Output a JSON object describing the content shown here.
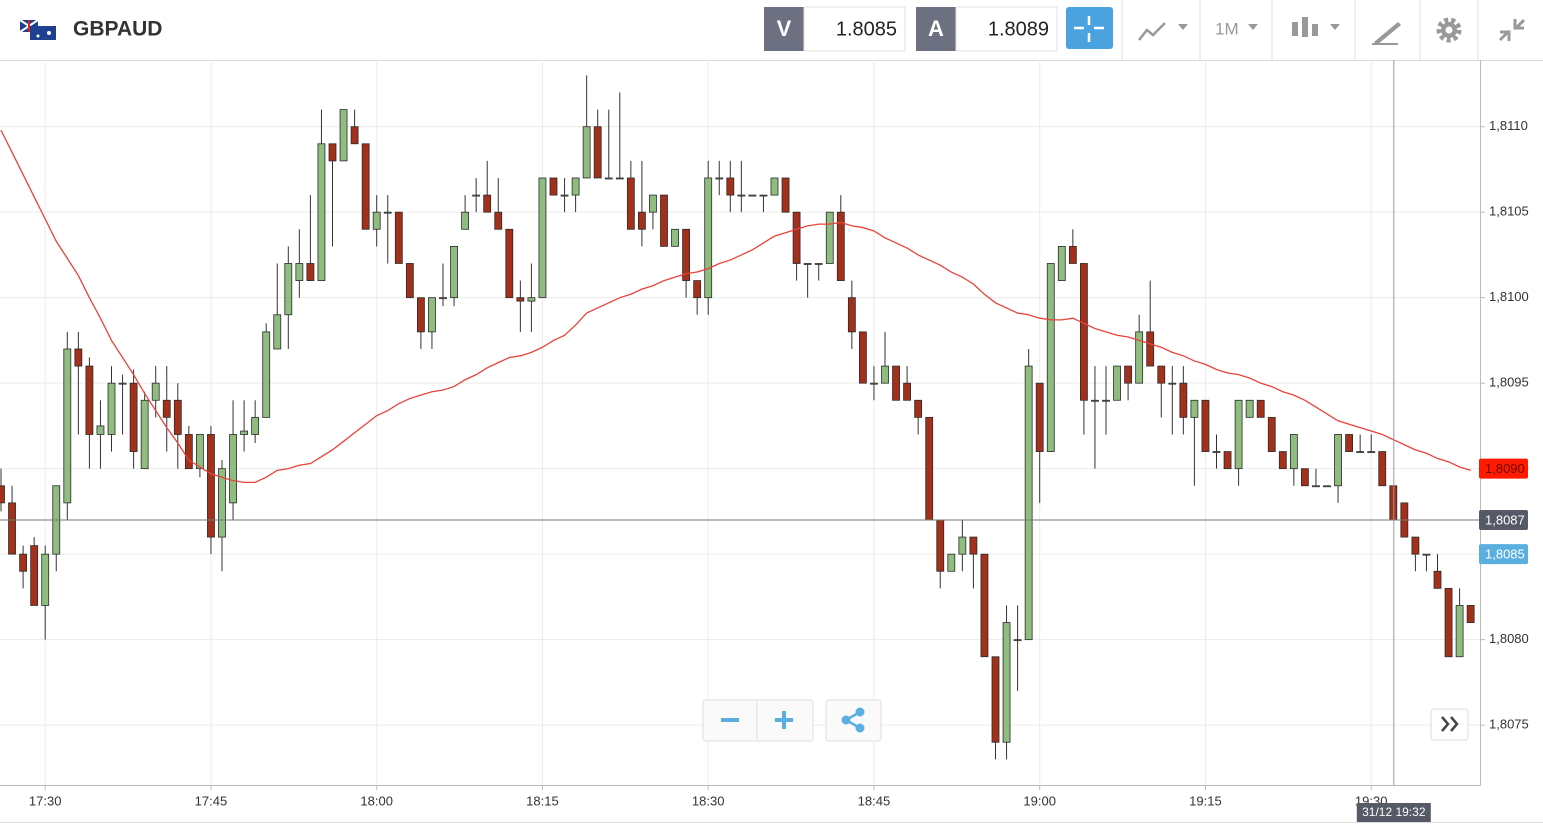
{
  "toolbar": {
    "symbol": "GBPAUD",
    "bid_label": "V",
    "bid": "1.8085",
    "ask_label": "A",
    "ask": "1.8089",
    "timeframe": "1M"
  },
  "chart_data": {
    "type": "candlestick",
    "categories": [
      null,
      null,
      null,
      null,
      "17:30",
      null,
      null,
      null,
      null,
      null,
      null,
      null,
      null,
      null,
      null,
      null,
      null,
      null,
      null,
      "17:45",
      null,
      null,
      null,
      null,
      null,
      null,
      null,
      null,
      null,
      null,
      null,
      null,
      null,
      null,
      "18:00",
      null,
      null,
      null,
      null,
      null,
      null,
      null,
      null,
      null,
      null,
      null,
      null,
      null,
      null,
      "18:15",
      null,
      null,
      null,
      null,
      null,
      null,
      null,
      null,
      null,
      null,
      null,
      null,
      null,
      null,
      "18:30",
      null,
      null,
      null,
      null,
      null,
      null,
      null,
      null,
      null,
      null,
      null,
      null,
      null,
      null,
      "18:45",
      null,
      null,
      null,
      null,
      null,
      null,
      null,
      null,
      null,
      null,
      null,
      null,
      null,
      null,
      "19:00",
      null,
      null,
      null,
      null,
      null,
      null,
      null,
      null,
      null,
      null,
      null,
      null,
      null,
      null,
      "19:15",
      null,
      null,
      null,
      null,
      null,
      null,
      null,
      null,
      null,
      null,
      null,
      null,
      null,
      null,
      "19:30",
      null,
      null,
      null,
      null,
      null,
      null,
      null,
      null,
      null
    ],
    "open": [
      1.8089,
      1.8088,
      1.8085,
      1.80855,
      1.8082,
      1.8085,
      1.8088,
      1.8097,
      1.8096,
      1.8092,
      1.8092,
      1.8095,
      1.8095,
      1.809,
      1.8094,
      1.8094,
      1.8094,
      1.8092,
      1.809,
      1.8092,
      1.8086,
      1.8088,
      1.8092,
      1.8092,
      1.8093,
      1.8097,
      1.8099,
      1.8101,
      1.8102,
      1.8101,
      1.8109,
      1.8108,
      1.811,
      1.8109,
      1.8104,
      1.8105,
      1.8105,
      1.8102,
      1.81,
      1.8098,
      1.81,
      1.81,
      1.8104,
      1.8106,
      1.8106,
      1.8105,
      1.8104,
      1.81,
      1.80998,
      1.81,
      1.8107,
      1.8106,
      1.8106,
      1.8107,
      1.811,
      1.8107,
      1.8107,
      1.8107,
      1.8105,
      1.8105,
      1.8106,
      1.8103,
      1.8104,
      1.8101,
      1.81,
      1.8107,
      1.8107,
      1.8106,
      1.8106,
      1.8106,
      1.8106,
      1.8107,
      1.8105,
      1.8102,
      1.8102,
      1.8102,
      1.8105,
      1.81,
      1.8098,
      1.8095,
      1.8095,
      1.8096,
      1.8095,
      1.8094,
      1.8093,
      1.8087,
      1.8084,
      1.8085,
      1.8086,
      1.8085,
      1.8079,
      1.8074,
      1.808,
      1.808,
      1.8095,
      1.8091,
      1.8101,
      1.8103,
      1.8102,
      1.8094,
      1.8094,
      1.8094,
      1.8096,
      1.8095,
      1.8098,
      1.8096,
      1.8095,
      1.8095,
      1.8093,
      1.8094,
      1.8091,
      1.8091,
      1.809,
      1.8093,
      1.8094,
      1.8093,
      1.8091,
      1.809,
      1.809,
      1.8089,
      1.8089,
      1.8089,
      1.8092,
      1.8091,
      1.8091,
      1.8091,
      1.8089,
      1.8088,
      1.8086,
      1.8085,
      1.8084,
      1.8083,
      1.8079,
      1.8082
    ],
    "high": [
      1.809,
      1.8089,
      1.80855,
      1.8086,
      1.80855,
      1.8089,
      1.8098,
      1.8098,
      1.80965,
      1.8094,
      1.8096,
      1.80955,
      1.80958,
      1.80945,
      1.8096,
      1.8096,
      1.8095,
      1.80925,
      1.8092,
      1.80925,
      1.80905,
      1.8094,
      1.8094,
      1.8094,
      1.80985,
      1.8102,
      1.8103,
      1.8104,
      1.8106,
      1.8111,
      1.8109,
      1.8111,
      1.8111,
      1.8109,
      1.8106,
      1.8106,
      1.8105,
      1.8102,
      1.81,
      1.81,
      1.8102,
      1.8103,
      1.8106,
      1.8107,
      1.8108,
      1.8107,
      1.8104,
      1.8101,
      1.8102,
      1.8107,
      1.8107,
      1.8107,
      1.8107,
      1.8113,
      1.8111,
      1.8111,
      1.8112,
      1.8108,
      1.8108,
      1.8106,
      1.8106,
      1.8104,
      1.8104,
      1.8101,
      1.8108,
      1.8108,
      1.8108,
      1.8108,
      1.8106,
      1.8106,
      1.8107,
      1.8107,
      1.8105,
      1.8102,
      1.8102,
      1.8105,
      1.8106,
      1.8101,
      1.8098,
      1.8096,
      1.8098,
      1.8096,
      1.8096,
      1.8094,
      1.8093,
      1.8087,
      1.8085,
      1.8087,
      1.8086,
      1.8085,
      1.8079,
      1.8082,
      1.8082,
      1.8097,
      1.8095,
      1.8102,
      1.8103,
      1.8104,
      1.8102,
      1.8096,
      1.8096,
      1.8096,
      1.8096,
      1.8099,
      1.8101,
      1.8096,
      1.8096,
      1.8096,
      1.8094,
      1.8094,
      1.8092,
      1.8091,
      1.8094,
      1.8094,
      1.8094,
      1.8093,
      1.8091,
      1.8092,
      1.809,
      1.809,
      1.8089,
      1.8092,
      1.8092,
      1.8092,
      1.8092,
      1.8091,
      1.8089,
      1.8088,
      1.8086,
      1.8085,
      1.8085,
      1.8083,
      1.8083,
      1.8082
    ],
    "low": [
      1.80875,
      1.8085,
      1.8083,
      1.8082,
      1.808,
      1.8084,
      1.8087,
      1.8092,
      1.809,
      1.809,
      1.8091,
      1.8092,
      1.809,
      1.809,
      1.8093,
      1.8091,
      1.809,
      1.809,
      1.80895,
      1.8085,
      1.8084,
      1.8087,
      1.8091,
      1.80915,
      1.8093,
      1.8097,
      1.8097,
      1.81,
      1.8101,
      1.8101,
      1.8103,
      1.8108,
      1.8109,
      1.8104,
      1.8103,
      1.8102,
      1.8102,
      1.81,
      1.8097,
      1.8097,
      1.80995,
      1.80995,
      1.8104,
      1.8105,
      1.8105,
      1.8104,
      1.81,
      1.8098,
      1.8098,
      1.81,
      1.8106,
      1.8105,
      1.8105,
      1.8107,
      1.8107,
      1.8107,
      1.8107,
      1.8104,
      1.8103,
      1.8104,
      1.8103,
      1.8103,
      1.81,
      1.8099,
      1.8099,
      1.8106,
      1.8105,
      1.8105,
      1.8106,
      1.8105,
      1.8106,
      1.8105,
      1.8101,
      1.81,
      1.8101,
      1.8102,
      1.8101,
      1.8097,
      1.8095,
      1.8094,
      1.8095,
      1.8094,
      1.8094,
      1.8092,
      1.8087,
      1.8083,
      1.8084,
      1.8084,
      1.8083,
      1.8079,
      1.8073,
      1.8073,
      1.8077,
      1.808,
      1.8088,
      1.8091,
      1.8101,
      1.8102,
      1.8092,
      1.809,
      1.8092,
      1.8094,
      1.8094,
      1.8095,
      1.8096,
      1.8093,
      1.8092,
      1.8092,
      1.8089,
      1.8091,
      1.809,
      1.809,
      1.8089,
      1.8093,
      1.8093,
      1.8091,
      1.809,
      1.8089,
      1.8089,
      1.8089,
      1.8089,
      1.8088,
      1.8091,
      1.8091,
      1.8091,
      1.8089,
      1.8087,
      1.8086,
      1.8084,
      1.8084,
      1.8083,
      1.8079,
      1.8079,
      1.8081
    ],
    "close": [
      1.8088,
      1.8085,
      1.8084,
      1.8082,
      1.8085,
      1.8089,
      1.8097,
      1.8096,
      1.8092,
      1.80925,
      1.8095,
      1.8095,
      1.8091,
      1.8094,
      1.8095,
      1.8093,
      1.8092,
      1.809,
      1.8092,
      1.8086,
      1.809,
      1.8092,
      1.80922,
      1.8093,
      1.8098,
      1.8099,
      1.8102,
      1.8102,
      1.8101,
      1.8109,
      1.8108,
      1.8111,
      1.8109,
      1.8104,
      1.8105,
      1.8105,
      1.8102,
      1.81,
      1.8098,
      1.81,
      1.81,
      1.8103,
      1.8105,
      1.8106,
      1.8105,
      1.8104,
      1.81,
      1.80998,
      1.81,
      1.8107,
      1.8106,
      1.8106,
      1.8107,
      1.811,
      1.8107,
      1.8107,
      1.8107,
      1.8104,
      1.8104,
      1.8106,
      1.8103,
      1.8104,
      1.8101,
      1.81,
      1.8107,
      1.8107,
      1.8106,
      1.8106,
      1.8106,
      1.8106,
      1.8107,
      1.8105,
      1.8102,
      1.8102,
      1.8102,
      1.8105,
      1.8101,
      1.8098,
      1.8095,
      1.8095,
      1.8096,
      1.8094,
      1.8094,
      1.8093,
      1.8087,
      1.8084,
      1.8085,
      1.8086,
      1.8085,
      1.8079,
      1.8074,
      1.8081,
      1.808,
      1.8096,
      1.8091,
      1.8102,
      1.8103,
      1.8102,
      1.8094,
      1.8094,
      1.8094,
      1.8096,
      1.8095,
      1.8098,
      1.8096,
      1.8095,
      1.8095,
      1.8093,
      1.8094,
      1.8091,
      1.8091,
      1.809,
      1.8094,
      1.8094,
      1.8093,
      1.8091,
      1.809,
      1.8092,
      1.8089,
      1.8089,
      1.8089,
      1.8092,
      1.8091,
      1.8091,
      1.8091,
      1.8089,
      1.8087,
      1.8086,
      1.8085,
      1.8085,
      1.8083,
      1.8079,
      1.8082,
      1.8081
    ],
    "up_color": "#8fbc7f",
    "down_color": "#a3301a",
    "overlays": [
      {
        "type": "line",
        "color": "#e8433a",
        "values": [
          1.81098,
          1.81085,
          1.81072,
          1.81059,
          1.81046,
          1.81033,
          1.81023,
          1.81013,
          1.81,
          1.80988,
          1.80975,
          1.80965,
          1.80955,
          1.80944,
          1.80934,
          1.80924,
          1.80915,
          1.80905,
          1.80901,
          1.80897,
          1.80895,
          1.80893,
          1.80892,
          1.80892,
          1.80895,
          1.80899,
          1.809,
          1.80902,
          1.80903,
          1.80907,
          1.80911,
          1.80916,
          1.80921,
          1.80926,
          1.80931,
          1.80934,
          1.80938,
          1.80941,
          1.80943,
          1.80945,
          1.80946,
          1.80948,
          1.80952,
          1.80955,
          1.80959,
          1.80962,
          1.80965,
          1.80966,
          1.80968,
          1.80971,
          1.80975,
          1.80978,
          1.80984,
          1.80991,
          1.80994,
          1.80997,
          1.81,
          1.81002,
          1.81005,
          1.81007,
          1.8101,
          1.81012,
          1.81014,
          1.81015,
          1.81017,
          1.8102,
          1.81022,
          1.81025,
          1.81028,
          1.81032,
          1.81036,
          1.81038,
          1.8104,
          1.81042,
          1.81043,
          1.81043,
          1.81044,
          1.81042,
          1.81041,
          1.81039,
          1.81035,
          1.81032,
          1.81029,
          1.81025,
          1.81022,
          1.81019,
          1.81015,
          1.81012,
          1.81008,
          1.81002,
          1.80997,
          1.80994,
          1.80991,
          1.8099,
          1.80988,
          1.80987,
          1.80987,
          1.80988,
          1.80985,
          1.80982,
          1.8098,
          1.80978,
          1.80977,
          1.80975,
          1.80973,
          1.80971,
          1.80968,
          1.80966,
          1.80963,
          1.80961,
          1.80958,
          1.80956,
          1.80955,
          1.80953,
          1.8095,
          1.80948,
          1.80945,
          1.80943,
          1.8094,
          1.80936,
          1.80932,
          1.80928,
          1.80926,
          1.80924,
          1.80922,
          1.8092,
          1.80917,
          1.80914,
          1.80911,
          1.80909,
          1.80906,
          1.80904,
          1.80901,
          1.80899
        ]
      }
    ],
    "ylim": [
      1.80715,
      1.81139
    ],
    "yticks": [
      {
        "value": 1.8075,
        "label": "1,8075"
      },
      {
        "value": 1.808,
        "label": "1,8080"
      },
      {
        "value": 1.8085,
        "label": "1,8085"
      },
      {
        "value": 1.809,
        "label": "1,8090"
      },
      {
        "value": 1.8095,
        "label": "1,8095"
      },
      {
        "value": 1.81,
        "label": "1,8100"
      },
      {
        "value": 1.8105,
        "label": "1,8105"
      },
      {
        "value": 1.811,
        "label": "1,8110"
      }
    ],
    "grid": true,
    "price_tags": [
      {
        "value": 1.809,
        "label": "1,8090",
        "color": "#ff1a00"
      },
      {
        "value": 1.8087,
        "label": "1,8087",
        "color": "#555a66"
      },
      {
        "value": 1.8085,
        "label": "1,8085",
        "color": "#5aafe0"
      }
    ],
    "crosshair_time": "31/12 19:32"
  }
}
